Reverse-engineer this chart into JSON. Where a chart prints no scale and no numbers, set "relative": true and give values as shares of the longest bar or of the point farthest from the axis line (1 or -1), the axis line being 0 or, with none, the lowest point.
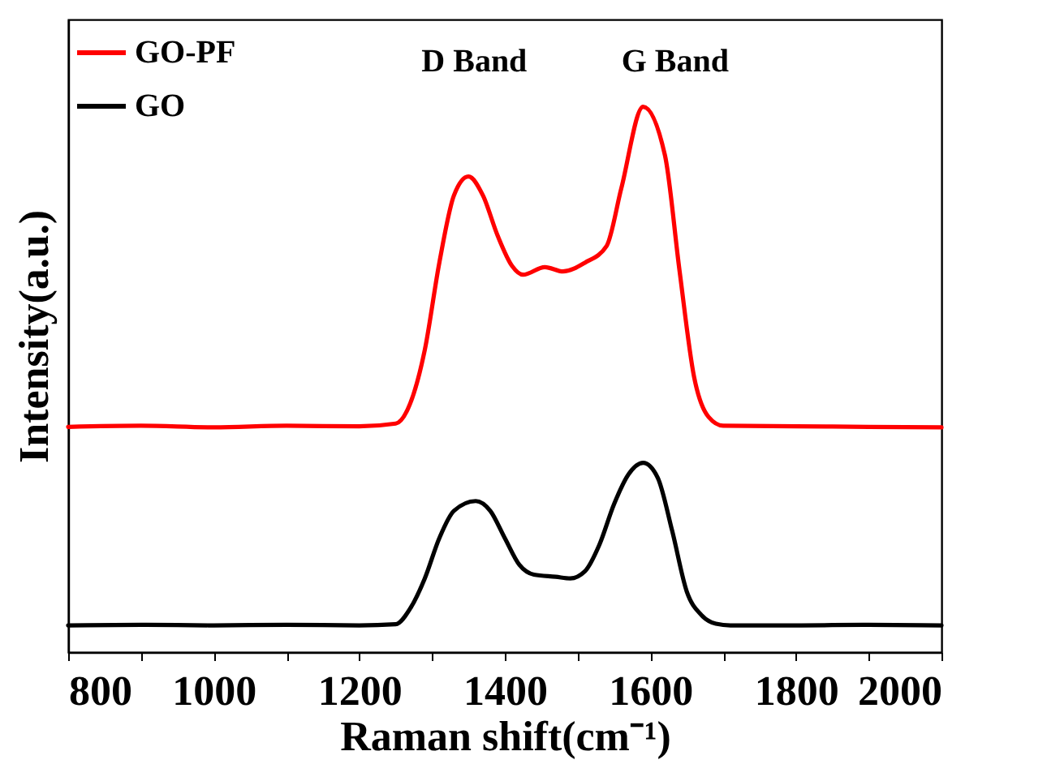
{
  "chart_data": {
    "type": "line",
    "relative": true,
    "xlabel": "Raman shift(cm⁻¹)",
    "ylabel": "Intensity(a.u.)",
    "x": [
      800,
      900,
      1000,
      1100,
      1200,
      1250,
      1270,
      1290,
      1310,
      1330,
      1350,
      1370,
      1390,
      1410,
      1425,
      1455,
      1480,
      1510,
      1540,
      1560,
      1590,
      1620,
      1640,
      1660,
      1680,
      1700,
      1800,
      1900,
      2000
    ],
    "series": [
      {
        "name": "GO-PF",
        "color": "#ff0000",
        "values": [
          0.413,
          0.415,
          0.412,
          0.415,
          0.414,
          0.419,
          0.456,
          0.554,
          0.714,
          0.837,
          0.872,
          0.837,
          0.764,
          0.708,
          0.692,
          0.706,
          0.698,
          0.714,
          0.745,
          0.85,
          1.0,
          0.911,
          0.7,
          0.505,
          0.431,
          0.415,
          0.414,
          0.413,
          0.412
        ]
      },
      {
        "name": "GO",
        "color": "#000000",
        "x": [
          800,
          900,
          1000,
          1100,
          1200,
          1250,
          1270,
          1290,
          1310,
          1330,
          1360,
          1380,
          1400,
          1420,
          1440,
          1470,
          1490,
          1510,
          1530,
          1550,
          1570,
          1590,
          1610,
          1630,
          1650,
          1670,
          1690,
          1710,
          1800,
          1900,
          2000
        ],
        "values": [
          0.049,
          0.05,
          0.049,
          0.05,
          0.049,
          0.051,
          0.08,
          0.135,
          0.209,
          0.259,
          0.277,
          0.259,
          0.209,
          0.16,
          0.142,
          0.138,
          0.135,
          0.148,
          0.197,
          0.271,
          0.326,
          0.347,
          0.32,
          0.222,
          0.111,
          0.068,
          0.052,
          0.049,
          0.049,
          0.05,
          0.049
        ]
      }
    ],
    "xlim": [
      800,
      2000
    ],
    "xticks": [
      800,
      {
        "value": 900,
        "label": null
      },
      1000,
      {
        "value": 1100,
        "label": null
      },
      1200,
      {
        "value": 1300,
        "label": null
      },
      1400,
      {
        "value": 1500,
        "label": null
      },
      1600,
      {
        "value": 1700,
        "label": null
      },
      1800,
      {
        "value": 1900,
        "label": null
      },
      2000
    ],
    "annotations": [
      "D Band",
      "G Band"
    ],
    "legend": "top left",
    "grid": false
  }
}
